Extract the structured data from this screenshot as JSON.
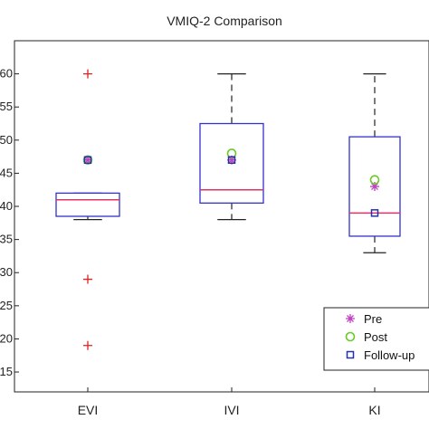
{
  "chart_data": {
    "type": "box",
    "title": "VMIQ-2 Comparison",
    "xlabel": "",
    "ylabel": "",
    "categories": [
      "EVI",
      "IVI",
      "KI"
    ],
    "ylim": [
      12,
      65
    ],
    "yticks": [
      15,
      20,
      25,
      30,
      35,
      40,
      45,
      50,
      55,
      60
    ],
    "ytick_labels": [
      "15",
      "20",
      "25",
      "30",
      "35",
      "40",
      "45",
      "50",
      "55",
      "60"
    ],
    "grid": false,
    "legend_position": "bottom-right",
    "boxes": [
      {
        "category": "EVI",
        "whisker_low": 38,
        "q1": 38.5,
        "median": 41,
        "q3": 42,
        "whisker_high": 42,
        "outliers": [
          60,
          29,
          19
        ]
      },
      {
        "category": "IVI",
        "whisker_low": 38,
        "q1": 40.5,
        "median": 42.5,
        "q3": 52.5,
        "whisker_high": 60,
        "outliers": []
      },
      {
        "category": "KI",
        "whisker_low": 33,
        "q1": 35.5,
        "median": 39,
        "q3": 50.5,
        "whisker_high": 60,
        "outliers": []
      }
    ],
    "series": [
      {
        "name": "Pre",
        "marker": "star",
        "color": "#c040c0",
        "values": [
          47,
          47,
          43
        ]
      },
      {
        "name": "Post",
        "marker": "circle",
        "color": "#66cc22",
        "values": [
          47,
          48,
          44
        ]
      },
      {
        "name": "Follow-up",
        "marker": "square",
        "color": "#2233aa",
        "values": [
          47,
          47,
          39
        ]
      }
    ],
    "colors": {
      "box": "#3333cc",
      "median": "#dd3366",
      "whisker": "#222222",
      "outlier": "#dd2222"
    }
  }
}
